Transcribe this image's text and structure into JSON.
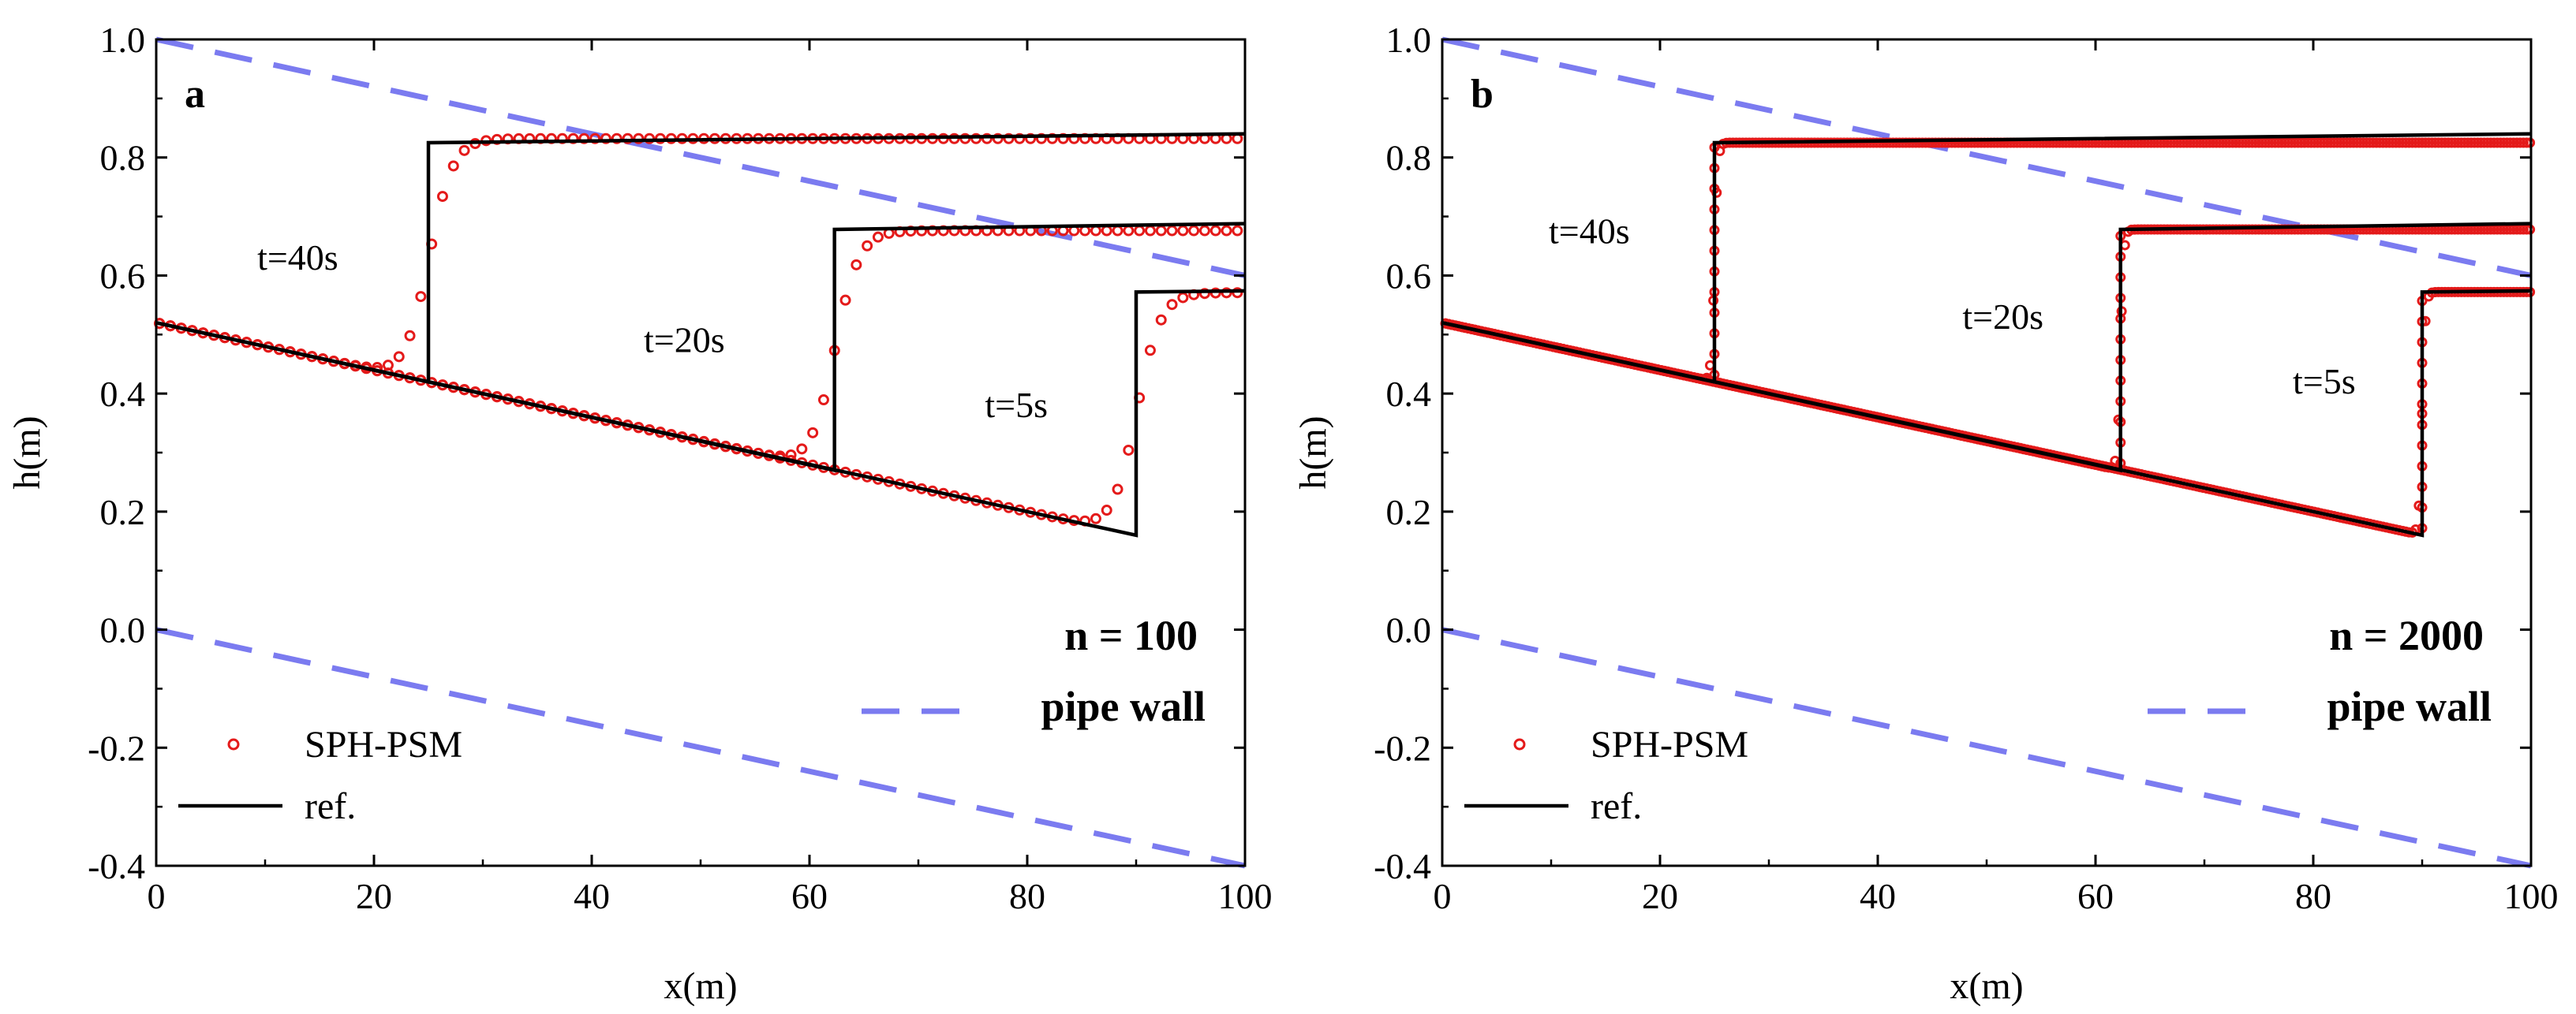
{
  "chart_data": [
    {
      "type": "line",
      "panel_label": "a",
      "xlabel": "x(m)",
      "ylabel": "h(m)",
      "xlim": [
        0,
        100
      ],
      "ylim": [
        -0.4,
        1.0
      ],
      "xticks": [
        "0",
        "20",
        "40",
        "60",
        "80",
        "100"
      ],
      "yticks": [
        "-0.4",
        "-0.2",
        "0.0",
        "0.2",
        "0.4",
        "0.6",
        "0.8",
        "1.0"
      ],
      "n_label": "n = 100",
      "legend": {
        "scatter": "SPH-PSM",
        "line": "ref.",
        "wall": "pipe wall"
      },
      "annotations": [
        {
          "text": "t=40s",
          "x": 13,
          "y": 0.61
        },
        {
          "text": "t=20s",
          "x": 48.5,
          "y": 0.47
        },
        {
          "text": "t=5s",
          "x": 79,
          "y": 0.36
        }
      ],
      "pipe_wall": {
        "top": [
          [
            0,
            1.0
          ],
          [
            100,
            0.6
          ]
        ],
        "bottom": [
          [
            0,
            0.0
          ],
          [
            100,
            -0.4
          ]
        ]
      },
      "series": [
        {
          "name": "ref. t=40s",
          "points": [
            [
              0,
              0.52
            ],
            [
              25,
              0.42
            ],
            [
              25,
              0.825
            ],
            [
              100,
              0.84
            ]
          ]
        },
        {
          "name": "ref. t=20s",
          "points": [
            [
              0,
              0.52
            ],
            [
              62.3,
              0.27
            ],
            [
              62.3,
              0.678
            ],
            [
              100,
              0.688
            ]
          ]
        },
        {
          "name": "ref. t=5s",
          "points": [
            [
              0,
              0.52
            ],
            [
              90,
              0.16
            ],
            [
              90,
              0.572
            ],
            [
              100,
              0.574
            ]
          ]
        }
      ],
      "sph": [
        {
          "name": "SPH-PSM t=40s",
          "shock": 25,
          "hlow": 0.42,
          "hhigh": 0.832,
          "width": 2.2,
          "spacing": 1
        },
        {
          "name": "SPH-PSM t=20s",
          "shock": 62.3,
          "hlow": 0.27,
          "hhigh": 0.676,
          "width": 2.2,
          "spacing": 1
        },
        {
          "name": "SPH-PSM t=5s",
          "shock": 90,
          "hlow": 0.16,
          "hhigh": 0.571,
          "width": 2.2,
          "spacing": 1
        }
      ]
    },
    {
      "type": "line",
      "panel_label": "b",
      "xlabel": "x(m)",
      "ylabel": "h(m)",
      "xlim": [
        0,
        100
      ],
      "ylim": [
        -0.4,
        1.0
      ],
      "xticks": [
        "0",
        "20",
        "40",
        "60",
        "80",
        "100"
      ],
      "yticks": [
        "-0.4",
        "-0.2",
        "0.0",
        "0.2",
        "0.4",
        "0.6",
        "0.8",
        "1.0"
      ],
      "n_label": "n = 2000",
      "legend": {
        "scatter": "SPH-PSM",
        "line": "ref.",
        "wall": "pipe wall"
      },
      "annotations": [
        {
          "text": "t=40s",
          "x": 13.5,
          "y": 0.655
        },
        {
          "text": "t=20s",
          "x": 51.5,
          "y": 0.51
        },
        {
          "text": "t=5s",
          "x": 81,
          "y": 0.4
        }
      ],
      "pipe_wall": {
        "top": [
          [
            0,
            1.0
          ],
          [
            100,
            0.6
          ]
        ],
        "bottom": [
          [
            0,
            0.0
          ],
          [
            100,
            -0.4
          ]
        ]
      },
      "series": [
        {
          "name": "ref. t=40s",
          "points": [
            [
              0,
              0.52
            ],
            [
              25,
              0.42
            ],
            [
              25,
              0.825
            ],
            [
              100,
              0.84
            ]
          ]
        },
        {
          "name": "ref. t=20s",
          "points": [
            [
              0,
              0.52
            ],
            [
              62.3,
              0.27
            ],
            [
              62.3,
              0.678
            ],
            [
              100,
              0.688
            ]
          ]
        },
        {
          "name": "ref. t=5s",
          "points": [
            [
              0,
              0.52
            ],
            [
              90,
              0.16
            ],
            [
              90,
              0.572
            ],
            [
              100,
              0.574
            ]
          ]
        }
      ],
      "sph": [
        {
          "name": "SPH-PSM t=40s",
          "shock": 25,
          "hlow": 0.42,
          "hhigh": 0.825,
          "width": 0.3,
          "spacing": 0.3
        },
        {
          "name": "SPH-PSM t=20s",
          "shock": 62.3,
          "hlow": 0.27,
          "hhigh": 0.678,
          "width": 0.3,
          "spacing": 0.3
        },
        {
          "name": "SPH-PSM t=5s",
          "shock": 90,
          "hlow": 0.16,
          "hhigh": 0.572,
          "width": 0.3,
          "spacing": 0.3
        }
      ]
    }
  ]
}
